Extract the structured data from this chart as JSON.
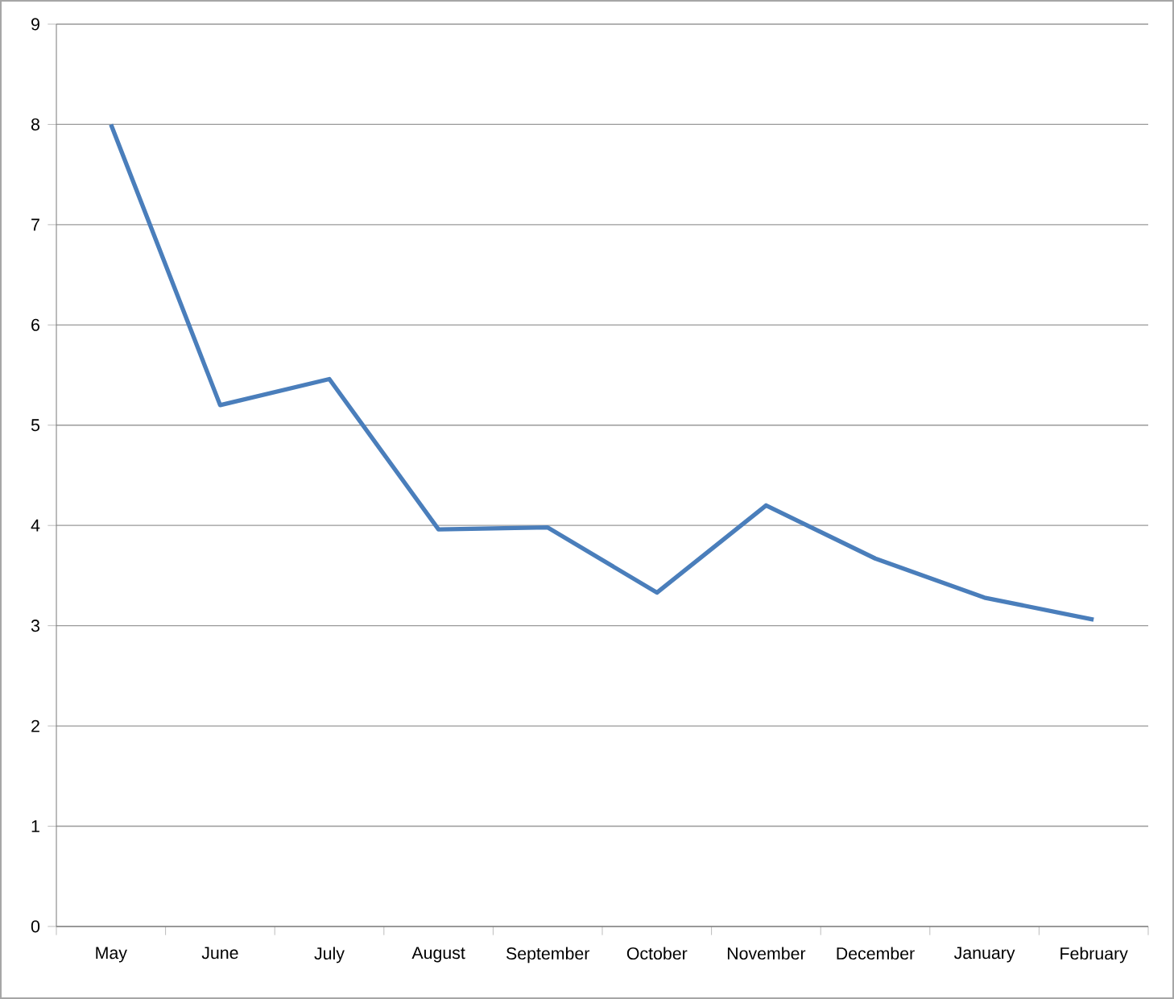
{
  "chart_data": {
    "type": "line",
    "categories": [
      "May",
      "June",
      "July",
      "August",
      "September",
      "October",
      "November",
      "December",
      "January",
      "February"
    ],
    "series": [
      {
        "color": "#4a7ebb",
        "values": [
          8.0,
          5.2,
          5.46,
          3.96,
          3.98,
          3.33,
          4.2,
          3.67,
          3.28,
          3.06
        ]
      }
    ],
    "ylim": [
      0,
      9
    ],
    "yticks": [
      0,
      1,
      2,
      3,
      4,
      5,
      6,
      7,
      8,
      9
    ],
    "grid": "y",
    "marker": "none",
    "line_style": "solid"
  }
}
